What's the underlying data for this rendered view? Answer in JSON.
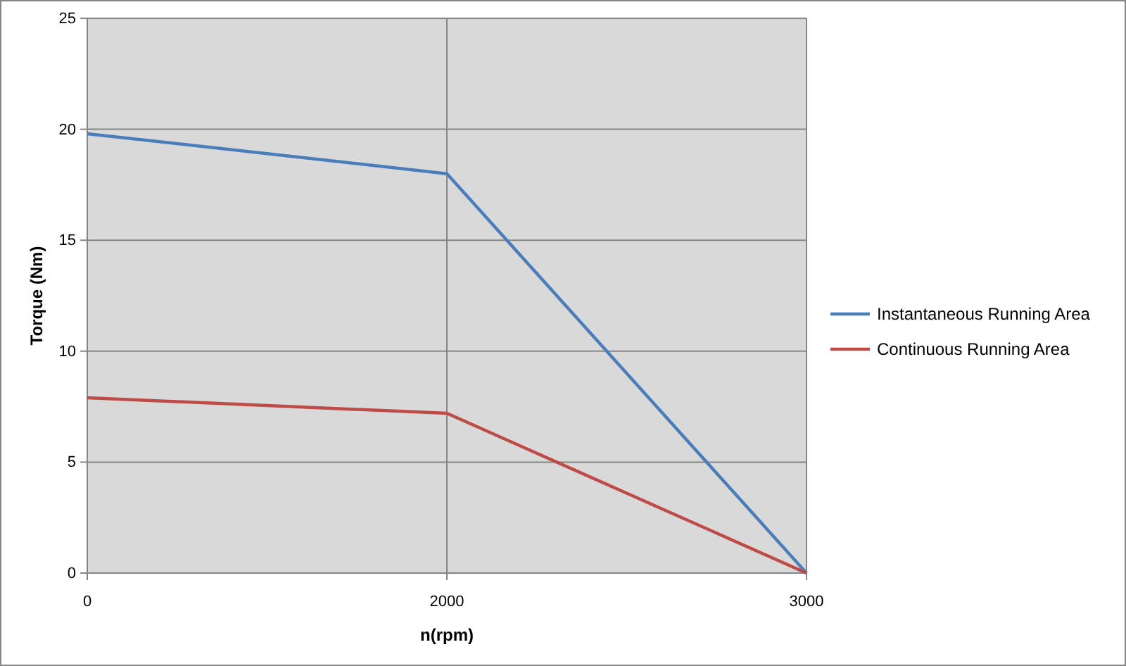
{
  "chart_data": {
    "type": "line",
    "xlabel": "n(rpm)",
    "ylabel": "Torque (Nm)",
    "categories": [
      "0",
      "2000",
      "3000"
    ],
    "series": [
      {
        "name": "Instantaneous Running Area",
        "color": "#4a7ebb",
        "values": [
          19.8,
          18.0,
          0
        ]
      },
      {
        "name": "Continuous Running Area",
        "color": "#be4b48",
        "values": [
          7.9,
          7.2,
          0
        ]
      }
    ],
    "ylim": [
      0,
      25
    ],
    "yticks": [
      0,
      5,
      10,
      15,
      20,
      25
    ],
    "grid": true,
    "legend": "right",
    "marker": "none",
    "line_style": "solid"
  }
}
